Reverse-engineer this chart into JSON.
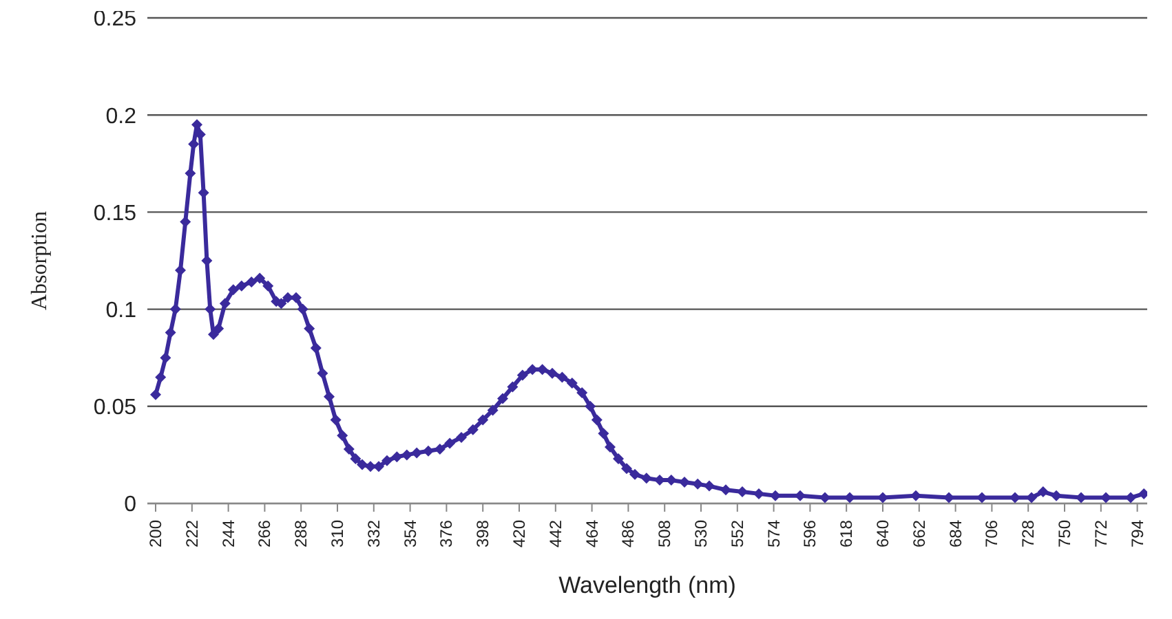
{
  "chart_data": {
    "type": "line",
    "xlabel": "Wavelength (nm)",
    "ylabel": "Absorption",
    "x": [
      200,
      203,
      206,
      209,
      212,
      215,
      218,
      221,
      223,
      225,
      227,
      229,
      231,
      233,
      235,
      238,
      242,
      247,
      252,
      258,
      263,
      268,
      273,
      276,
      280,
      285,
      289,
      293,
      297,
      301,
      305,
      309,
      313,
      317,
      321,
      325,
      330,
      335,
      340,
      346,
      352,
      358,
      365,
      372,
      378,
      385,
      392,
      398,
      404,
      410,
      416,
      422,
      428,
      434,
      440,
      446,
      452,
      458,
      463,
      467,
      471,
      475,
      480,
      485,
      490,
      497,
      505,
      512,
      520,
      528,
      535,
      545,
      555,
      565,
      575,
      590,
      605,
      620,
      640,
      660,
      680,
      700,
      720,
      730,
      737,
      745,
      760,
      775,
      790,
      798
    ],
    "series": [
      {
        "color": "#3a2a9c",
        "values": [
          0.056,
          0.065,
          0.075,
          0.088,
          0.1,
          0.12,
          0.145,
          0.17,
          0.185,
          0.195,
          0.19,
          0.16,
          0.125,
          0.1,
          0.087,
          0.09,
          0.103,
          0.11,
          0.112,
          0.114,
          0.116,
          0.112,
          0.104,
          0.103,
          0.106,
          0.106,
          0.1,
          0.09,
          0.08,
          0.067,
          0.055,
          0.043,
          0.035,
          0.028,
          0.023,
          0.02,
          0.019,
          0.019,
          0.022,
          0.024,
          0.025,
          0.026,
          0.027,
          0.028,
          0.031,
          0.034,
          0.038,
          0.043,
          0.048,
          0.054,
          0.06,
          0.066,
          0.069,
          0.069,
          0.067,
          0.065,
          0.062,
          0.057,
          0.05,
          0.043,
          0.036,
          0.029,
          0.023,
          0.018,
          0.015,
          0.013,
          0.012,
          0.012,
          0.011,
          0.01,
          0.009,
          0.007,
          0.006,
          0.005,
          0.004,
          0.004,
          0.003,
          0.003,
          0.003,
          0.004,
          0.003,
          0.003,
          0.003,
          0.003,
          0.006,
          0.004,
          0.003,
          0.003,
          0.003,
          0.005
        ]
      }
    ],
    "xlim": [
      195,
      800
    ],
    "xticks": [
      200,
      222,
      244,
      266,
      288,
      310,
      332,
      354,
      376,
      398,
      420,
      442,
      464,
      486,
      508,
      530,
      552,
      574,
      596,
      618,
      640,
      662,
      684,
      706,
      728,
      750,
      772,
      794
    ],
    "ylim": [
      0,
      0.25
    ],
    "yticks": [
      0,
      0.05,
      0.1,
      0.15,
      0.2,
      0.25
    ],
    "grid": "y",
    "marker": "diamond",
    "line_style": "solid",
    "legend": false
  }
}
